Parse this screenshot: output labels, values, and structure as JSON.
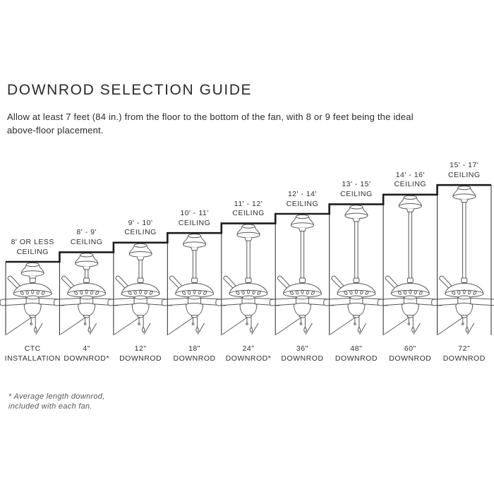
{
  "title": "DOWNROD SELECTION GUIDE",
  "intro": {
    "line1": "Allow at least 7 feet (84 in.) from the floor to the bottom of the fan, with 8 or 9 feet being the ideal",
    "line2": "above-floor placement."
  },
  "footnote": {
    "line1": "* Average length downrod,",
    "line2": "included with each fan."
  },
  "colors": {
    "stair_line": "#1c1c1c",
    "cell_line": "#3c3c3c",
    "fan_line": "#5a5a5a",
    "text": "#2e2e2e"
  },
  "fans": [
    {
      "ceiling_line1": "8' OR LESS",
      "ceiling_line2": "CEILING",
      "downrod_line1": "CTC",
      "downrod_line2": "INSTALLATION"
    },
    {
      "ceiling_line1": "8' - 9'",
      "ceiling_line2": "CEILING",
      "downrod_line1": "4\"",
      "downrod_line2": "DOWNROD*"
    },
    {
      "ceiling_line1": "9' - 10'",
      "ceiling_line2": "CEILING",
      "downrod_line1": "12\"",
      "downrod_line2": "DOWNROD"
    },
    {
      "ceiling_line1": "10' - 11'",
      "ceiling_line2": "CEILING",
      "downrod_line1": "18\"",
      "downrod_line2": "DOWNROD"
    },
    {
      "ceiling_line1": "11' - 12'",
      "ceiling_line2": "CEILING",
      "downrod_line1": "24\"",
      "downrod_line2": "DOWNROD*"
    },
    {
      "ceiling_line1": "12' - 14'",
      "ceiling_line2": "CEILING",
      "downrod_line1": "36\"",
      "downrod_line2": "DOWNROD"
    },
    {
      "ceiling_line1": "13' - 15'",
      "ceiling_line2": "CEILING",
      "downrod_line1": "48\"",
      "downrod_line2": "DOWNROD"
    },
    {
      "ceiling_line1": "14' - 16'",
      "ceiling_line2": "CEILING",
      "downrod_line1": "60\"",
      "downrod_line2": "DOWNROD"
    },
    {
      "ceiling_line1": "15' - 17'",
      "ceiling_line2": "CEILING",
      "downrod_line1": "72\"",
      "downrod_line2": "DOWNROD"
    }
  ]
}
